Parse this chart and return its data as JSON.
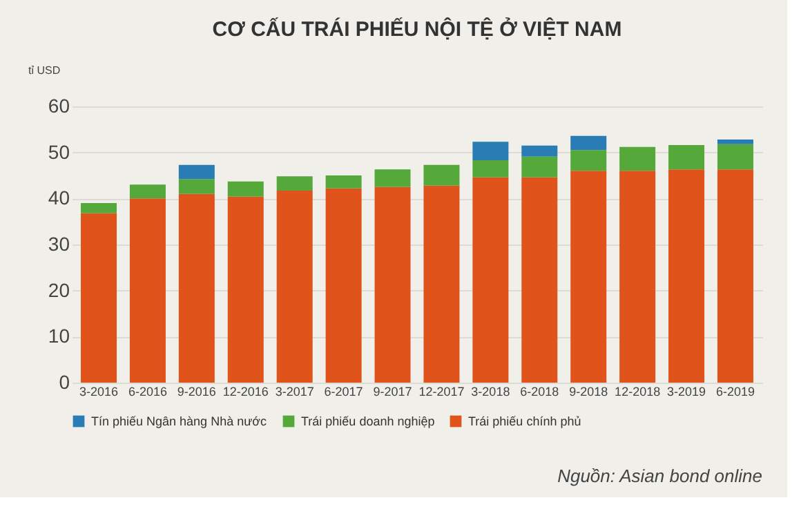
{
  "chart_data": {
    "type": "bar",
    "title": "CƠ CẤU TRÁI PHIẾU NỘI TỆ Ở VIỆT NAM",
    "ylabel": "tỉ USD",
    "stacked": true,
    "categories": [
      "3-2016",
      "6-2016",
      "9-2016",
      "12-2016",
      "3-2017",
      "6-2017",
      "9-2017",
      "12-2017",
      "3-2018",
      "6-2018",
      "9-2018",
      "12-2018",
      "3-2019",
      "6-2019"
    ],
    "series": [
      {
        "name": "Trái phiếu chính phủ",
        "color": "#e0531a",
        "values": [
          36.8,
          40.0,
          41.0,
          40.4,
          41.7,
          42.2,
          42.5,
          42.8,
          44.6,
          44.6,
          46.0,
          46.0,
          46.3,
          46.3
        ]
      },
      {
        "name": "Trái phiếu doanh nghiệp",
        "color": "#55a83a",
        "values": [
          2.2,
          3.0,
          3.2,
          3.3,
          3.1,
          2.8,
          3.8,
          4.5,
          3.7,
          4.5,
          4.5,
          5.2,
          5.3,
          5.5
        ]
      },
      {
        "name": "Tín phiếu Ngân hàng Nhà nước",
        "color": "#2a7db4",
        "values": [
          null,
          null,
          3.1,
          null,
          null,
          null,
          null,
          null,
          4.0,
          2.4,
          3.1,
          null,
          null,
          1.0
        ]
      }
    ],
    "ylim": [
      0,
      60
    ],
    "yticks": [
      0,
      10,
      20,
      30,
      40,
      50,
      60
    ],
    "grid": "y",
    "legend": "bottom left",
    "annotations": [
      "Nguồn: Asian bond online"
    ]
  }
}
